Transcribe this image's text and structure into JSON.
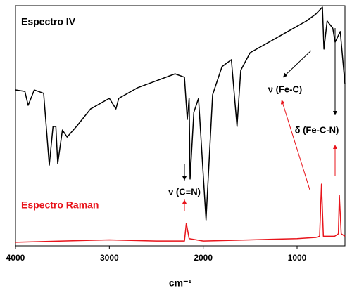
{
  "chart_data": {
    "type": "line",
    "xlabel": "cm⁻¹",
    "xlim": [
      4000,
      490
    ],
    "xticks": [
      4000,
      3000,
      2000,
      1000
    ],
    "ylim": [
      0,
      100
    ],
    "annotations": [
      "Espectro IV",
      "Espectro Raman",
      "ν (C≡N)",
      "ν (Fe-C)",
      "δ (Fe-C-N)"
    ],
    "series": [
      {
        "name": "Espectro IV",
        "color": "#000000",
        "x": [
          4000,
          3900,
          3865,
          3800,
          3700,
          3640,
          3600,
          3570,
          3550,
          3500,
          3450,
          3350,
          3200,
          3000,
          2930,
          2900,
          2700,
          2500,
          2300,
          2200,
          2170,
          2150,
          2140,
          2100,
          2050,
          1970,
          1900,
          1800,
          1700,
          1640,
          1600,
          1500,
          1300,
          1100,
          900,
          800,
          730,
          714,
          680,
          620,
          595,
          540,
          490
        ],
        "values": [
          64.9,
          64.3,
          58.5,
          64.9,
          63.5,
          33.6,
          49.7,
          49.7,
          34.2,
          48.2,
          45.3,
          49.7,
          57.0,
          61.4,
          57.0,
          61.4,
          65.8,
          68.7,
          71.6,
          70.2,
          52.6,
          61.4,
          27.8,
          55.6,
          61.4,
          10.8,
          62.9,
          74.6,
          77.5,
          49.7,
          73.1,
          80.4,
          84.8,
          89.2,
          93.6,
          96.5,
          99.4,
          81.9,
          93.6,
          90.6,
          84.8,
          89.2,
          67.3
        ]
      },
      {
        "name": "Espectro Raman",
        "color": "#e8141b",
        "x": [
          4000,
          3500,
          3000,
          2500,
          2200,
          2180,
          2150,
          2000,
          1500,
          1000,
          800,
          760,
          740,
          720,
          600,
          560,
          550,
          530,
          490
        ],
        "values": [
          1.5,
          2,
          2.5,
          2,
          2,
          9.4,
          3,
          2,
          2.5,
          3,
          3.5,
          4,
          25.7,
          4,
          4,
          5,
          21.1,
          5,
          4
        ]
      }
    ]
  }
}
